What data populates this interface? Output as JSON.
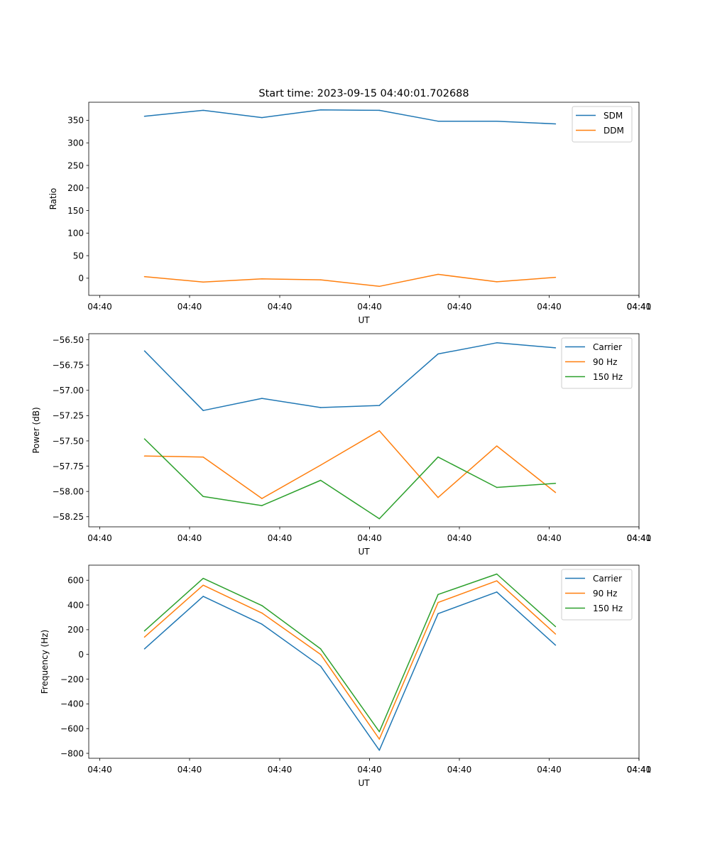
{
  "chart_data": [
    {
      "type": "line",
      "title": "Start time: 2023-09-15 04:40:01.702688",
      "xlabel": "UT",
      "ylabel": "Ratio",
      "x_tick_labels": [
        "04:40",
        "04:40",
        "04:40",
        "04:40",
        "04:40",
        "04:40",
        "04:40",
        "04:41"
      ],
      "x": [
        1,
        2,
        3,
        4,
        5,
        6,
        7,
        8
      ],
      "xlim": [
        0.8,
        9.05
      ],
      "ylim": [
        -38,
        390
      ],
      "yticks": [
        0,
        50,
        100,
        150,
        200,
        250,
        300,
        350
      ],
      "y_tick_labels": [
        "0",
        "50",
        "100",
        "150",
        "200",
        "250",
        "300",
        "350"
      ],
      "legend_position": "top-right",
      "series": [
        {
          "name": "SDM",
          "color": "#1f77b4",
          "values": [
            359,
            372,
            356,
            373,
            372,
            348,
            348,
            342
          ]
        },
        {
          "name": "DDM",
          "color": "#ff7f0e",
          "values": [
            3.5,
            -8.5,
            -1.5,
            -3.5,
            -18,
            8.5,
            -8,
            2
          ]
        }
      ]
    },
    {
      "type": "line",
      "title": "",
      "xlabel": "UT",
      "ylabel": "Power (dB)",
      "x_tick_labels": [
        "04:40",
        "04:40",
        "04:40",
        "04:40",
        "04:40",
        "04:40",
        "04:40",
        "04:41"
      ],
      "x": [
        1,
        2,
        3,
        4,
        5,
        6,
        7,
        8
      ],
      "xlim": [
        0.8,
        9.05
      ],
      "ylim": [
        -58.35,
        -56.44
      ],
      "yticks": [
        -58.25,
        -58.0,
        -57.75,
        -57.5,
        -57.25,
        -57.0,
        -56.75,
        -56.5
      ],
      "y_tick_labels": [
        "−58.25",
        "−58.00",
        "−57.75",
        "−57.50",
        "−57.25",
        "−57.00",
        "−56.75",
        "−56.50"
      ],
      "legend_position": "top-right",
      "series": [
        {
          "name": "Carrier",
          "color": "#1f77b4",
          "values": [
            -56.61,
            -57.2,
            -57.08,
            -57.17,
            -57.15,
            -56.64,
            -56.53,
            -56.58
          ]
        },
        {
          "name": "90 Hz",
          "color": "#ff7f0e",
          "values": [
            -57.65,
            -57.66,
            -58.07,
            -57.74,
            -57.4,
            -58.06,
            -57.55,
            -58.01
          ]
        },
        {
          "name": "150 Hz",
          "color": "#2ca02c",
          "values": [
            -57.48,
            -58.05,
            -58.14,
            -57.89,
            -58.27,
            -57.66,
            -57.96,
            -57.92
          ]
        }
      ]
    },
    {
      "type": "line",
      "title": "",
      "xlabel": "UT",
      "ylabel": "Frequency (Hz)",
      "x_tick_labels": [
        "04:40",
        "04:40",
        "04:40",
        "04:40",
        "04:40",
        "04:40",
        "04:40",
        "04:41"
      ],
      "x": [
        1,
        2,
        3,
        4,
        5,
        6,
        7,
        8
      ],
      "xlim": [
        0.8,
        9.05
      ],
      "ylim": [
        -840,
        722
      ],
      "yticks": [
        -800,
        -600,
        -400,
        -200,
        0,
        200,
        400,
        600
      ],
      "y_tick_labels": [
        "−800",
        "−600",
        "−400",
        "−200",
        "0",
        "200",
        "400",
        "600"
      ],
      "legend_position": "top-right",
      "series": [
        {
          "name": "Carrier",
          "color": "#1f77b4",
          "values": [
            45,
            470,
            245,
            -95,
            -775,
            330,
            505,
            75
          ]
        },
        {
          "name": "90 Hz",
          "color": "#ff7f0e",
          "values": [
            140,
            560,
            335,
            0,
            -685,
            420,
            595,
            165
          ]
        },
        {
          "name": "150 Hz",
          "color": "#2ca02c",
          "values": [
            190,
            615,
            395,
            45,
            -625,
            485,
            650,
            225
          ]
        }
      ]
    }
  ]
}
